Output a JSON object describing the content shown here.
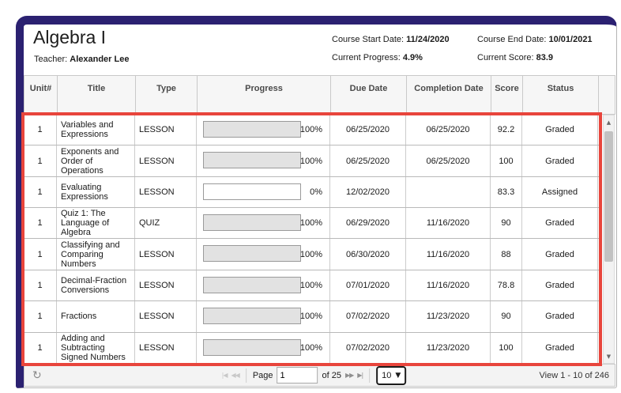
{
  "course": {
    "title": "Algebra I",
    "teacher_label": "Teacher: ",
    "teacher_name": "Alexander Lee",
    "start_date_label": "Course Start Date: ",
    "start_date": "11/24/2020",
    "end_date_label": "Course End Date: ",
    "end_date": "10/01/2021",
    "progress_label": "Current Progress: ",
    "progress": "4.9%",
    "score_label": "Current Score: ",
    "score": "83.9"
  },
  "table": {
    "columns": [
      "Unit#",
      "Title",
      "Type",
      "Progress",
      "Due Date",
      "Completion Date",
      "Score",
      "Status"
    ],
    "rows": [
      {
        "unit": "1",
        "title": "Variables and Expressions",
        "type": "LESSON",
        "progress": "100%",
        "due": "06/25/2020",
        "completed": "06/25/2020",
        "score": "92.2",
        "status": "Graded"
      },
      {
        "unit": "1",
        "title": "Exponents and Order of Operations",
        "type": "LESSON",
        "progress": "100%",
        "due": "06/25/2020",
        "completed": "06/25/2020",
        "score": "100",
        "status": "Graded"
      },
      {
        "unit": "1",
        "title": "Evaluating Expressions",
        "type": "LESSON",
        "progress": "0%",
        "due": "12/02/2020",
        "completed": "",
        "score": "83.3",
        "status": "Assigned"
      },
      {
        "unit": "1",
        "title": "Quiz 1: The Language of Algebra",
        "type": "QUIZ",
        "progress": "100%",
        "due": "06/29/2020",
        "completed": "11/16/2020",
        "score": "90",
        "status": "Graded"
      },
      {
        "unit": "1",
        "title": "Classifying and Comparing Numbers",
        "type": "LESSON",
        "progress": "100%",
        "due": "06/30/2020",
        "completed": "11/16/2020",
        "score": "88",
        "status": "Graded"
      },
      {
        "unit": "1",
        "title": "Decimal-Fraction Conversions",
        "type": "LESSON",
        "progress": "100%",
        "due": "07/01/2020",
        "completed": "11/16/2020",
        "score": "78.8",
        "status": "Graded"
      },
      {
        "unit": "1",
        "title": "Fractions",
        "type": "LESSON",
        "progress": "100%",
        "due": "07/02/2020",
        "completed": "11/23/2020",
        "score": "90",
        "status": "Graded"
      },
      {
        "unit": "1",
        "title": "Adding and Subtracting Signed Numbers",
        "type": "LESSON",
        "progress": "100%",
        "due": "07/02/2020",
        "completed": "11/23/2020",
        "score": "100",
        "status": "Graded"
      }
    ]
  },
  "pager": {
    "page_label": "Page",
    "page_value": "1",
    "of_label": "of 25",
    "page_size": "10",
    "view_summary": "View 1 - 10 of 246"
  },
  "icons": {
    "refresh": "↻",
    "first": "|◀",
    "prev": "◀◀",
    "next": "▶▶",
    "last": "▶|",
    "caret": "▼",
    "scroll_up": "▲",
    "scroll_down": "▼"
  },
  "colors": {
    "frame": "#2b2171",
    "highlight_border": "#e8453c",
    "header_bg": "#f6f6f6",
    "progress_fill": "#e2e2e2",
    "pager_bg": "#f3f3f3",
    "scroll_thumb": "#c2c2c2"
  }
}
